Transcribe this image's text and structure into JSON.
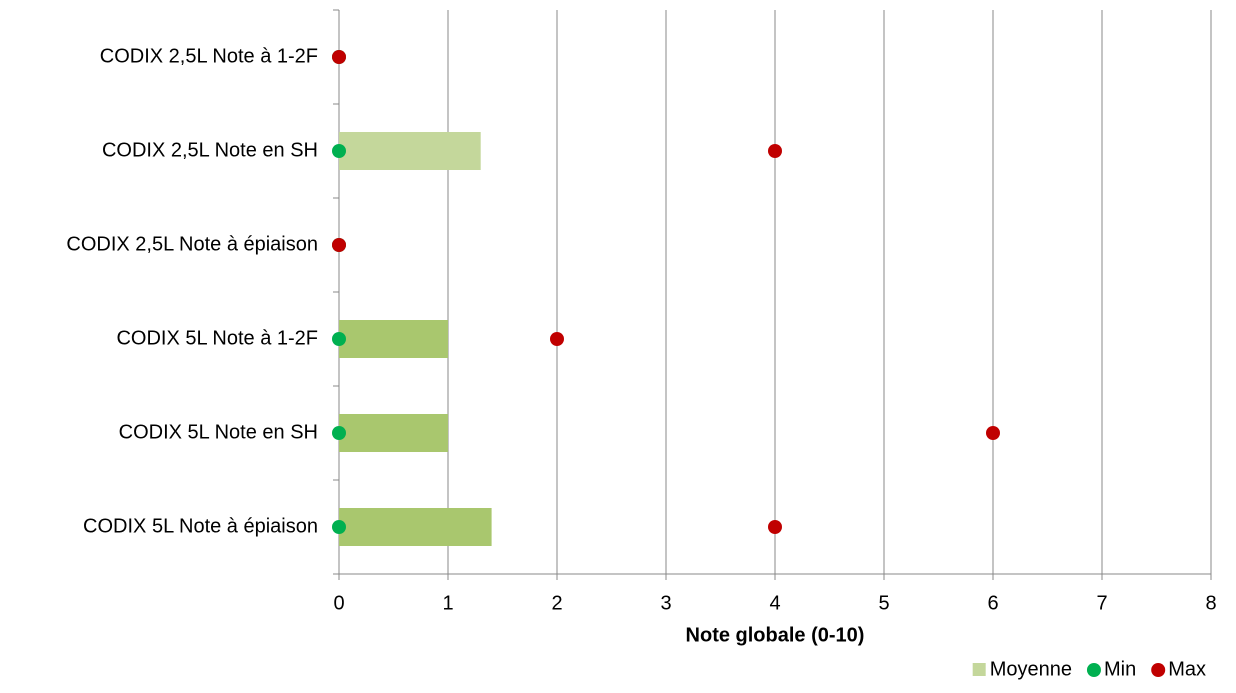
{
  "chart_data": {
    "type": "bar",
    "orientation": "horizontal",
    "x_label": "Note globale (0-10)",
    "categories": [
      "CODIX 2,5L Note à 1-2F",
      "CODIX 2,5L Note en SH",
      "CODIX 2,5L Note à épiaison",
      "CODIX 5L Note à 1-2F",
      "CODIX 5L Note en SH",
      "CODIX 5L Note à épiaison"
    ],
    "series": [
      {
        "name": "Moyenne",
        "style": "bar",
        "color": "#c4d79b",
        "colors": [
          "#a9c76e",
          "#c4d79b",
          "#a9c76e",
          "#a9c76e",
          "#a9c76e",
          "#a9c76e"
        ],
        "values": [
          0,
          1.3,
          0,
          1,
          1,
          1.4
        ]
      },
      {
        "name": "Min",
        "style": "dot",
        "color": "#00b050",
        "values": [
          0,
          0,
          0,
          0,
          0,
          0
        ]
      },
      {
        "name": "Max",
        "style": "dot",
        "color": "#c00000",
        "values": [
          0,
          4,
          0,
          2,
          6,
          4
        ]
      }
    ],
    "xlim": [
      0,
      8
    ],
    "xticks": [
      0,
      1,
      2,
      3,
      4,
      5,
      6,
      7,
      8
    ],
    "grid": true,
    "legend": "bottom-right"
  }
}
